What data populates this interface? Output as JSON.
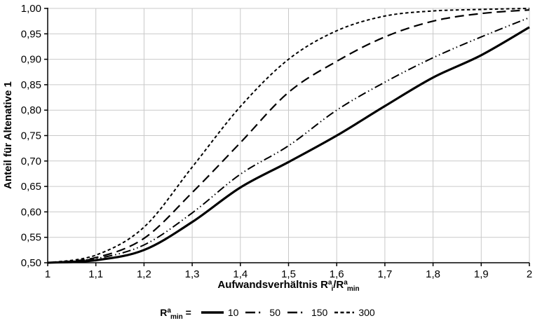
{
  "chart_data": {
    "type": "line",
    "title": "",
    "xlabel": "Aufwandsverhältnis Ra_i/Ra_min",
    "ylabel": "Anteil für Altenative 1",
    "xlim": [
      1,
      2
    ],
    "ylim": [
      0.5,
      1.0
    ],
    "grid": true,
    "legend_position": "bottom",
    "x": [
      1.0,
      1.1,
      1.2,
      1.3,
      1.4,
      1.5,
      1.6,
      1.7,
      1.8,
      1.9,
      2.0
    ],
    "x_ticks": [
      1.0,
      1.1,
      1.2,
      1.3,
      1.4,
      1.5,
      1.6,
      1.7,
      1.8,
      1.9,
      2.0
    ],
    "x_tick_labels": [
      "1",
      "1,1",
      "1,2",
      "1,3",
      "1,4",
      "1,5",
      "1,6",
      "1,7",
      "1,8",
      "1,9",
      "2"
    ],
    "y_ticks": [
      0.5,
      0.55,
      0.6,
      0.65,
      0.7,
      0.75,
      0.8,
      0.85,
      0.9,
      0.95,
      1.0
    ],
    "y_tick_labels": [
      "0,50",
      "0,55",
      "0,60",
      "0,65",
      "0,70",
      "0,75",
      "0,80",
      "0,85",
      "0,90",
      "0,95",
      "1,00"
    ],
    "series": [
      {
        "name": "10",
        "line_style": "solid",
        "values": [
          0.5,
          0.505,
          0.525,
          0.58,
          0.648,
          0.698,
          0.75,
          0.808,
          0.864,
          0.908,
          0.963
        ]
      },
      {
        "name": "50",
        "line_style": "dash-dot-dot",
        "values": [
          0.5,
          0.508,
          0.535,
          0.598,
          0.674,
          0.73,
          0.8,
          0.855,
          0.903,
          0.944,
          0.982
        ]
      },
      {
        "name": "150",
        "line_style": "long-dash",
        "values": [
          0.5,
          0.51,
          0.548,
          0.638,
          0.736,
          0.835,
          0.896,
          0.944,
          0.975,
          0.99,
          0.997
        ]
      },
      {
        "name": "300",
        "line_style": "short-dash",
        "values": [
          0.5,
          0.515,
          0.57,
          0.688,
          0.807,
          0.9,
          0.956,
          0.985,
          0.995,
          0.998,
          1.0
        ]
      }
    ],
    "xaxis_title_parts": {
      "base1": "Aufwandsverhältnis R",
      "sup1": "a",
      "sub1": "i",
      "base2": "/R",
      "sup2": "a",
      "sub2": "min"
    },
    "legend": {
      "prefix_parts": {
        "base": "R",
        "sup": "a",
        "sub": "min",
        "equals": " ="
      }
    },
    "colors": {
      "line": "#000000",
      "grid": "#c9c9c9",
      "axis": "#000000",
      "background": "#ffffff"
    }
  }
}
